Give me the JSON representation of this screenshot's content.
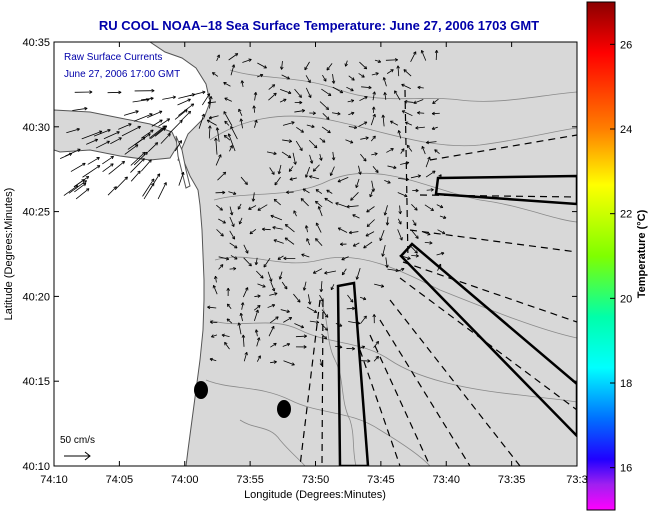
{
  "title": "RU COOL   NOAA–18  Sea Surface Temperature:  June 27, 2006 1703 GMT",
  "legend": {
    "line1": "Raw Surface Currents",
    "line2": "June 27, 2006 17:00 GMT"
  },
  "scale_label": "50 cm/s",
  "xlabel": "Longitude (Degrees:Minutes)",
  "ylabel": "Latitude (Degrees:Minutes)",
  "colorbar": {
    "label": "Temperature (°C)",
    "ticks": [
      "26",
      "24",
      "22",
      "20",
      "18",
      "16"
    ],
    "range": [
      15,
      27
    ]
  },
  "x_ticks": [
    "74:10",
    "74:05",
    "74:00",
    "73:55",
    "73:50",
    "73:45",
    "73:40",
    "73:35",
    "73:3"
  ],
  "y_ticks": [
    "40:35",
    "40:30",
    "40:25",
    "40:20",
    "40:15",
    "40:10"
  ],
  "colors": {
    "title": "#0000aa",
    "legend": "#0000aa",
    "land": "#ffffff",
    "ocean": "#d8d8d8",
    "vector": "#000000"
  }
}
